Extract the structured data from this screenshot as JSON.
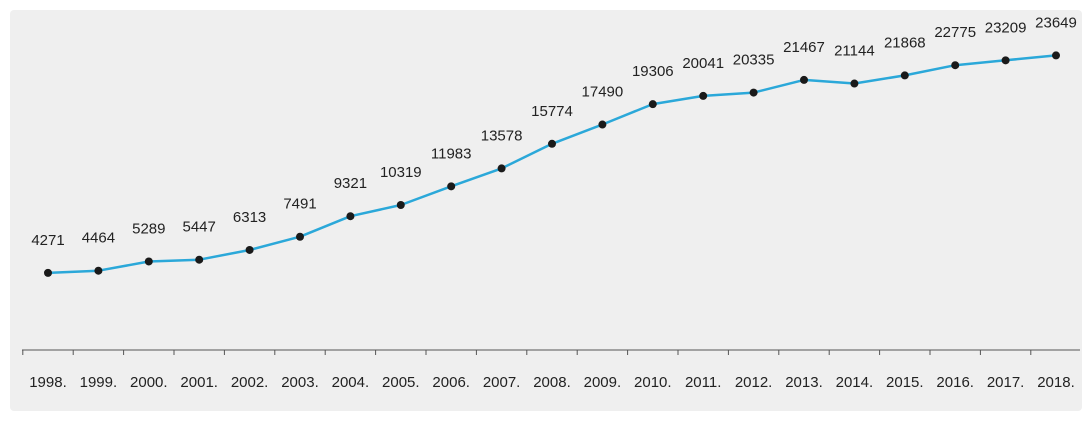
{
  "chart_data": {
    "type": "line",
    "title": "",
    "xlabel": "",
    "ylabel": "",
    "categories": [
      "1998.",
      "1999.",
      "2000.",
      "2001.",
      "2002.",
      "2003.",
      "2004.",
      "2005.",
      "2006.",
      "2007.",
      "2008.",
      "2009.",
      "2010.",
      "2011.",
      "2012.",
      "2013.",
      "2014.",
      "2015.",
      "2016.",
      "2017.",
      "2018."
    ],
    "series": [
      {
        "values": [
          4271,
          4464,
          5289,
          5447,
          6313,
          7491,
          9321,
          10319,
          11983,
          13578,
          15774,
          17490,
          19306,
          20041,
          20335,
          21467,
          21144,
          21868,
          22775,
          23209,
          23649
        ]
      }
    ],
    "data_labels": [
      "4271",
      "4464",
      "5289",
      "5447",
      "6313",
      "7491",
      "9321",
      "10319",
      "11983",
      "13578",
      "15774",
      "17490",
      "19306",
      "20041",
      "20335",
      "21467",
      "21144",
      "21868",
      "22775",
      "23209",
      "23649"
    ],
    "ylim": [
      -2600,
      25200
    ],
    "y_axis_visible": false,
    "grid": false,
    "legend": "none",
    "colors": {
      "line": "#2ba8d9",
      "marker": "#1a1a1a",
      "axis": "#555555",
      "text": "#222222",
      "background": "#efefef"
    }
  }
}
